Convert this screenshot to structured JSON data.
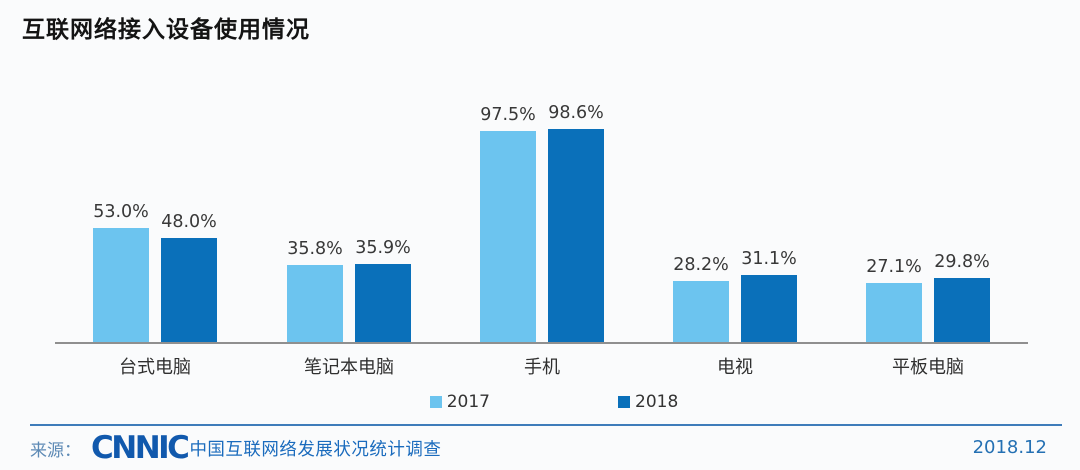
{
  "title": "互联网络接入设备使用情况",
  "chart_data": {
    "type": "bar",
    "categories": [
      "台式电脑",
      "笔记本电脑",
      "手机",
      "电视",
      "平板电脑"
    ],
    "series": [
      {
        "name": "2017",
        "color": "#6cc4ef",
        "values": [
          53.0,
          35.8,
          97.5,
          28.2,
          27.1
        ]
      },
      {
        "name": "2018",
        "color": "#0a70ba",
        "values": [
          48.0,
          35.9,
          98.6,
          31.1,
          29.8
        ]
      }
    ],
    "value_labels": [
      [
        "53.0%",
        "35.8%",
        "97.5%",
        "28.2%",
        "27.1%"
      ],
      [
        "48.0%",
        "35.9%",
        "98.6%",
        "31.1%",
        "29.8%"
      ]
    ],
    "value_suffix": "%",
    "ylim": [
      0,
      100
    ],
    "grid": false,
    "legend_position": "bottom"
  },
  "legend": {
    "items": [
      {
        "label": "2017",
        "color": "#6cc4ef"
      },
      {
        "label": "2018",
        "color": "#0a70ba"
      }
    ]
  },
  "footer": {
    "source_label": "来源：",
    "logo": "CNNIC",
    "source_text": "中国互联网络发展状况统计调查",
    "date": "2018.12"
  },
  "colors": {
    "background": "#fafbfc",
    "axis_line": "#8f8f8f",
    "divider_blue": "#3e7cba",
    "footer_blue": "#1a6bbd",
    "logo_blue": "#1159ad"
  }
}
